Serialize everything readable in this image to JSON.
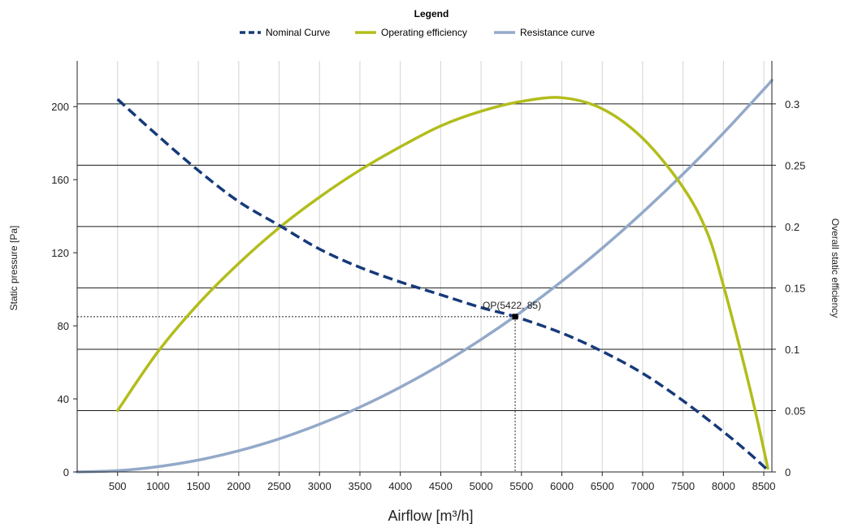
{
  "legend": {
    "title": "Legend"
  },
  "chart_data": {
    "type": "line",
    "xlabel": "Airflow [m³/h]",
    "ylabel": "Static pressure [Pa]",
    "y2label": "Overall static efficiency",
    "xlim": [
      0,
      8600
    ],
    "ylim": [
      0,
      225
    ],
    "y2lim": [
      0,
      0.335
    ],
    "x_ticks": [
      500,
      1000,
      1500,
      2000,
      2500,
      3000,
      3500,
      4000,
      4500,
      5000,
      5500,
      6000,
      6500,
      7000,
      7500,
      8000,
      8500
    ],
    "y_ticks": [
      0,
      40,
      80,
      120,
      160,
      200
    ],
    "y2_ticks": [
      0,
      0.05,
      0.1,
      0.15,
      0.2,
      0.25,
      0.3
    ],
    "grid": true,
    "legend_position": "top-center",
    "operating_point": {
      "x": 5422,
      "y": 85,
      "label": "OP(5422, 85)"
    },
    "series": [
      {
        "name": "Nominal Curve",
        "axis": "left",
        "style": "dashed",
        "color": "#163a7a",
        "x": [
          500,
          1000,
          1500,
          2000,
          2500,
          3000,
          3500,
          4000,
          4500,
          5000,
          5422,
          6000,
          6500,
          7000,
          7500,
          8000,
          8300,
          8550
        ],
        "y": [
          204,
          184,
          165,
          148,
          135,
          122,
          112,
          104,
          97,
          90,
          85,
          76,
          66,
          54,
          39,
          22,
          11,
          1
        ]
      },
      {
        "name": "Operating efficiency",
        "axis": "right",
        "style": "solid",
        "color": "#b2bd1c",
        "x": [
          500,
          1000,
          1500,
          2000,
          2500,
          3000,
          3500,
          4000,
          4500,
          5000,
          5500,
          6000,
          6500,
          7000,
          7500,
          7800,
          8000,
          8200,
          8400,
          8550
        ],
        "y": [
          0.05,
          0.098,
          0.137,
          0.17,
          0.199,
          0.224,
          0.246,
          0.265,
          0.282,
          0.294,
          0.302,
          0.305,
          0.296,
          0.272,
          0.232,
          0.195,
          0.152,
          0.102,
          0.048,
          0.003
        ]
      },
      {
        "name": "Resistance curve",
        "axis": "left",
        "style": "solid",
        "color": "#93a9c9",
        "x": [
          0,
          500,
          1000,
          1500,
          2000,
          2500,
          3000,
          3500,
          4000,
          4500,
          5000,
          5500,
          6000,
          6500,
          7000,
          7500,
          8000,
          8500,
          8600
        ],
        "y": [
          0,
          0.7,
          2.9,
          6.5,
          11.6,
          18.1,
          26.1,
          35.5,
          46.4,
          58.7,
          72.5,
          87.7,
          104.4,
          122.5,
          142.1,
          163.1,
          185.5,
          209.4,
          214.4
        ]
      }
    ]
  }
}
